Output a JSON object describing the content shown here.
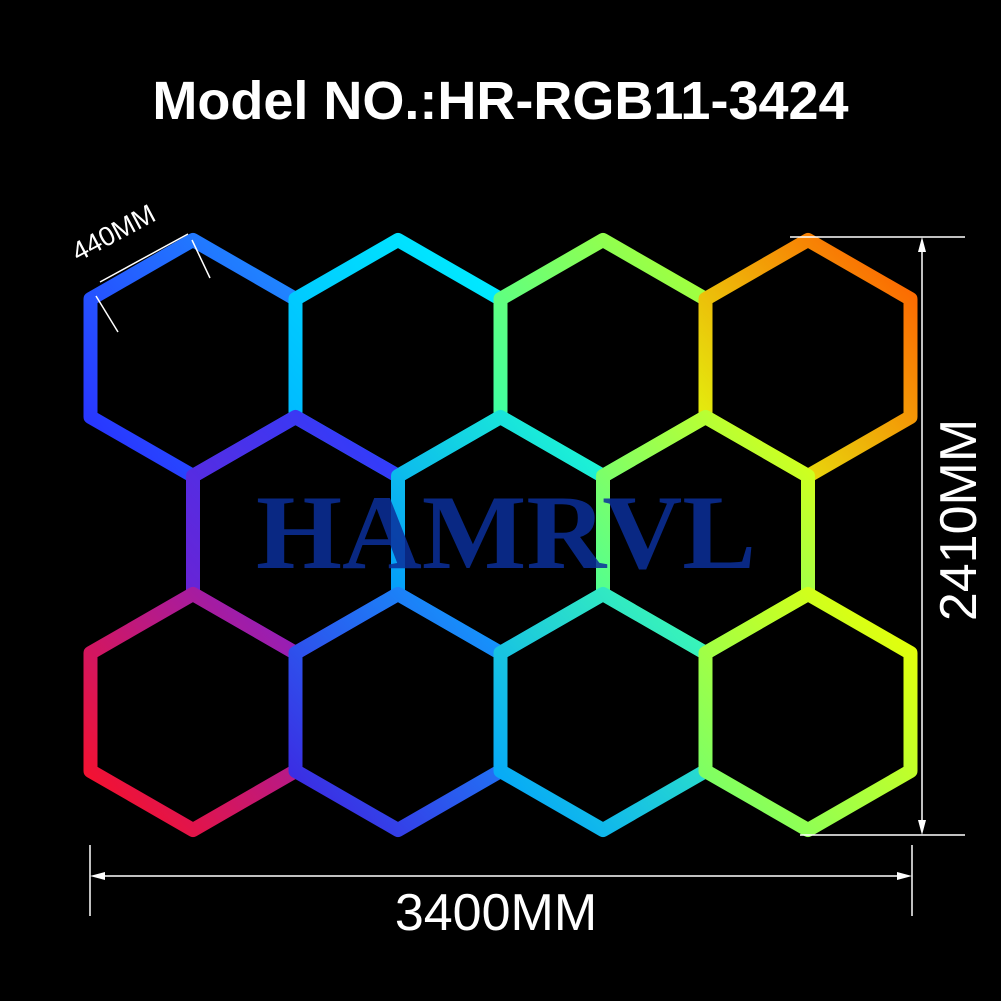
{
  "title": "Model NO.:HR-RGB11-3424",
  "watermark": "HAMRVL",
  "dimensions": {
    "edge_length": "440MM",
    "height": "2410MM",
    "width": "3400MM"
  },
  "colors": {
    "background": "#000000",
    "dimension_lines": "#ffffff",
    "watermark": "#0b2f9a"
  },
  "hexagons": [
    {
      "row": 1,
      "col": 1,
      "colors": [
        "#2a2cff",
        "#1e90ff"
      ]
    },
    {
      "row": 1,
      "col": 2,
      "colors": [
        "#00b4ff",
        "#00f0ff"
      ]
    },
    {
      "row": 1,
      "col": 3,
      "colors": [
        "#30ffb0",
        "#b0ff30"
      ]
    },
    {
      "row": 1,
      "col": 4,
      "colors": [
        "#e0ff10",
        "#ff5a00"
      ]
    },
    {
      "row": 2,
      "col": 1,
      "colors": [
        "#7020d0",
        "#2a40ff"
      ]
    },
    {
      "row": 2,
      "col": 2,
      "colors": [
        "#0090ff",
        "#20ffd0"
      ]
    },
    {
      "row": 2,
      "col": 3,
      "colors": [
        "#40ffa0",
        "#e0ff10"
      ]
    },
    {
      "row": 3,
      "col": 1,
      "colors": [
        "#ff1020",
        "#8a20c8"
      ]
    },
    {
      "row": 3,
      "col": 2,
      "colors": [
        "#4020e0",
        "#10a0ff"
      ]
    },
    {
      "row": 3,
      "col": 3,
      "colors": [
        "#00a0ff",
        "#40ffb0"
      ]
    },
    {
      "row": 3,
      "col": 4,
      "colors": [
        "#70ff70",
        "#f0ff00"
      ]
    }
  ]
}
